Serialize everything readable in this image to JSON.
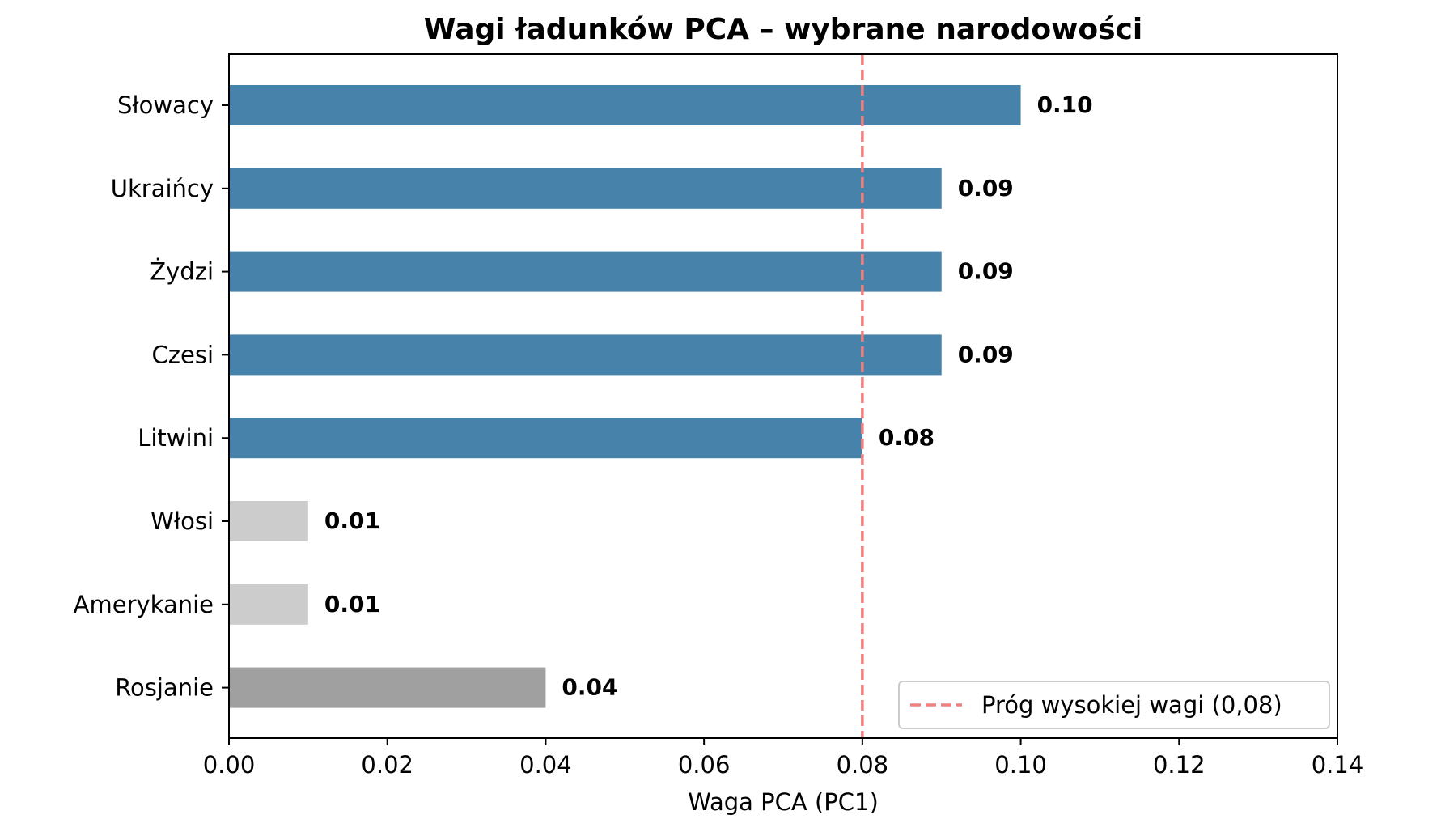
{
  "chart_data": {
    "type": "bar",
    "orientation": "horizontal",
    "title": "Wagi ładunków PCA – wybrane narodowości",
    "xlabel": "Waga PCA (PC1)",
    "ylabel": "",
    "xlim": [
      0,
      0.14
    ],
    "xticks": [
      0.0,
      0.02,
      0.04,
      0.06,
      0.08,
      0.1,
      0.12,
      0.14
    ],
    "xtick_labels": [
      "0.00",
      "0.02",
      "0.04",
      "0.06",
      "0.08",
      "0.10",
      "0.12",
      "0.14"
    ],
    "grid": false,
    "categories": [
      "Słowacy",
      "Ukraińcy",
      "Żydzi",
      "Czesi",
      "Litwini",
      "Włosi",
      "Amerykanie",
      "Rosjanie"
    ],
    "values": [
      0.1,
      0.09,
      0.09,
      0.09,
      0.08,
      0.01,
      0.01,
      0.04
    ],
    "value_labels": [
      "0.10",
      "0.09",
      "0.09",
      "0.09",
      "0.08",
      "0.01",
      "0.01",
      "0.04"
    ],
    "bar_colors": [
      "#4682a9",
      "#4682a9",
      "#4682a9",
      "#4682a9",
      "#4682a9",
      "#cccccc",
      "#cccccc",
      "#a0a0a0"
    ],
    "threshold": {
      "value": 0.08,
      "label": "Próg wysokiej wagi (0,08)",
      "color": "#f08080",
      "style": "dashed"
    },
    "legend": {
      "position": "lower-right",
      "entries": [
        "Próg wysokiej wagi (0,08)"
      ]
    }
  }
}
